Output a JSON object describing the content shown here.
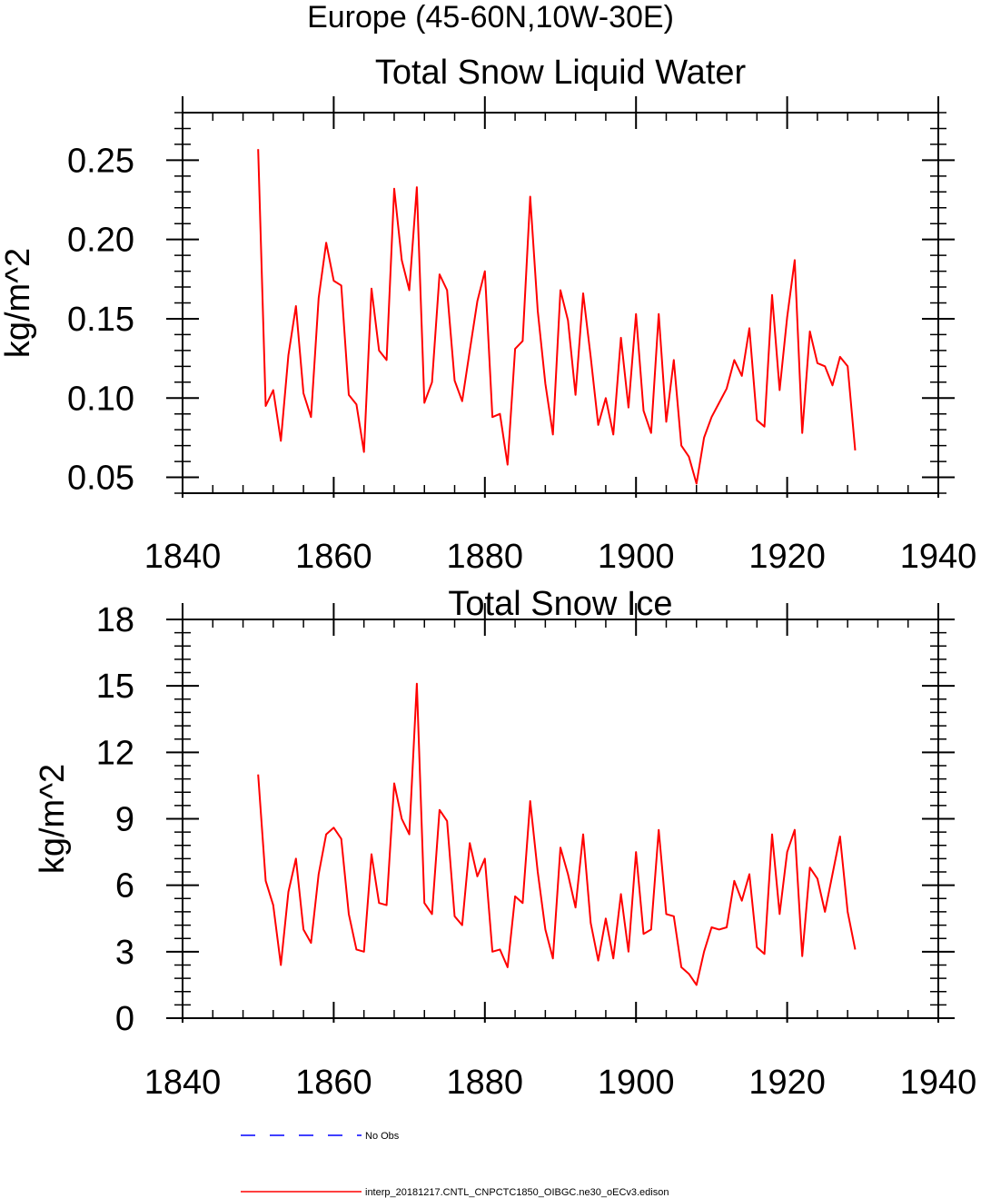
{
  "figure_title": "Europe (45-60N,10W-30E)",
  "colors": {
    "model": "#ff0000",
    "obs": "#0000ff",
    "axis": "#000000"
  },
  "legend": [
    {
      "label": "No Obs",
      "style": "dashed",
      "color": "#0000ff"
    },
    {
      "label": "interp_20181217.CNTL_CNPCTC1850_OIBGC.ne30_oECv3.edison",
      "style": "solid",
      "color": "#ff0000"
    }
  ],
  "chart_data": [
    {
      "type": "line",
      "title": "Total Snow Liquid Water",
      "xlabel": "",
      "ylabel": "kg/m^2",
      "xlim": [
        1840,
        1940
      ],
      "ylim": [
        0.04,
        0.28
      ],
      "xticks": [
        1840,
        1860,
        1880,
        1900,
        1920,
        1940
      ],
      "yticks": [
        0.05,
        0.1,
        0.15,
        0.2,
        0.25
      ],
      "ytick_labels": [
        "0.05",
        "0.10",
        "0.15",
        "0.20",
        "0.25"
      ],
      "series": [
        {
          "name": "interp_20181217.CNTL_CNPCTC1850_OIBGC.ne30_oECv3.edison",
          "x_start": 1850,
          "values": [
            0.257,
            0.095,
            0.105,
            0.073,
            0.127,
            0.158,
            0.103,
            0.088,
            0.163,
            0.198,
            0.174,
            0.171,
            0.102,
            0.096,
            0.066,
            0.169,
            0.13,
            0.124,
            0.232,
            0.187,
            0.168,
            0.233,
            0.097,
            0.11,
            0.178,
            0.168,
            0.111,
            0.098,
            0.13,
            0.161,
            0.18,
            0.088,
            0.09,
            0.058,
            0.131,
            0.136,
            0.227,
            0.155,
            0.109,
            0.077,
            0.168,
            0.149,
            0.102,
            0.166,
            0.126,
            0.083,
            0.1,
            0.077,
            0.138,
            0.094,
            0.153,
            0.092,
            0.078,
            0.153,
            0.085,
            0.124,
            0.07,
            0.063,
            0.046,
            0.075,
            0.088,
            0.097,
            0.106,
            0.124,
            0.114,
            0.144,
            0.086,
            0.082,
            0.165,
            0.105,
            0.151,
            0.187,
            0.078,
            0.142,
            0.122,
            0.12,
            0.108,
            0.126,
            0.12,
            0.067
          ]
        }
      ]
    },
    {
      "type": "line",
      "title": "Total Snow Ice",
      "xlabel": "",
      "ylabel": "kg/m^2",
      "xlim": [
        1840,
        1940
      ],
      "ylim": [
        0,
        18
      ],
      "xticks": [
        1840,
        1860,
        1880,
        1900,
        1920,
        1940
      ],
      "yticks": [
        0,
        3,
        6,
        9,
        12,
        15,
        18
      ],
      "ytick_labels": [
        "0",
        "3",
        "6",
        "9",
        "12",
        "15",
        "18"
      ],
      "series": [
        {
          "name": "interp_20181217.CNTL_CNPCTC1850_OIBGC.ne30_oECv3.edison",
          "x_start": 1850,
          "values": [
            11.0,
            6.2,
            5.1,
            2.4,
            5.7,
            7.2,
            4.0,
            3.4,
            6.5,
            8.3,
            8.6,
            8.1,
            4.7,
            3.1,
            3.0,
            7.4,
            5.2,
            5.1,
            10.6,
            9.0,
            8.3,
            15.1,
            5.2,
            4.7,
            9.4,
            8.9,
            4.6,
            4.2,
            7.9,
            6.4,
            7.2,
            3.0,
            3.1,
            2.3,
            5.5,
            5.2,
            9.8,
            6.6,
            4.0,
            2.7,
            7.7,
            6.5,
            5.0,
            8.3,
            4.3,
            2.6,
            4.5,
            2.7,
            5.6,
            3.0,
            7.5,
            3.8,
            4.0,
            8.5,
            4.7,
            4.6,
            2.3,
            2.0,
            1.5,
            3.0,
            4.1,
            4.0,
            4.1,
            6.2,
            5.3,
            6.5,
            3.2,
            2.9,
            8.3,
            4.7,
            7.5,
            8.5,
            2.8,
            6.8,
            6.3,
            4.8,
            6.5,
            8.2,
            4.8,
            3.1
          ]
        }
      ]
    }
  ]
}
